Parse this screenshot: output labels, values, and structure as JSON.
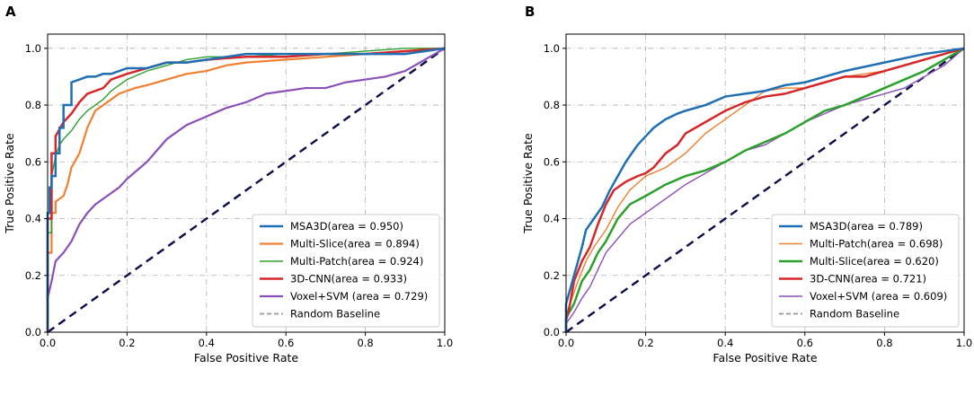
{
  "figure": {
    "panel_labels": [
      "A",
      "B"
    ]
  },
  "chart_data": [
    {
      "panel": "A",
      "type": "line",
      "xlabel": "False Positive Rate",
      "ylabel": "True Positive Rate",
      "xlim": [
        0,
        1.0
      ],
      "ylim": [
        0,
        1.05
      ],
      "xticks": [
        0.0,
        0.2,
        0.4,
        0.6,
        0.8,
        1.0
      ],
      "yticks": [
        0.0,
        0.2,
        0.4,
        0.6,
        0.8,
        1.0
      ],
      "tick_labels": [
        "0.0",
        "0.2",
        "0.4",
        "0.6",
        "0.8",
        "1.0"
      ],
      "grid": true,
      "legend_position": "lower-right",
      "series": [
        {
          "name": "MSA3D(area = 0.950)",
          "color": "#1f6fb4",
          "width": 2.5,
          "dash": "",
          "x": [
            0,
            0,
            0.005,
            0.005,
            0.01,
            0.01,
            0.02,
            0.02,
            0.03,
            0.03,
            0.04,
            0.04,
            0.06,
            0.06,
            0.08,
            0.1,
            0.12,
            0.14,
            0.16,
            0.2,
            0.25,
            0.3,
            0.35,
            0.4,
            0.45,
            0.5,
            0.6,
            0.7,
            0.8,
            0.9,
            0.95,
            1.0
          ],
          "y": [
            0,
            0.42,
            0.42,
            0.51,
            0.51,
            0.55,
            0.55,
            0.63,
            0.63,
            0.72,
            0.72,
            0.8,
            0.8,
            0.88,
            0.89,
            0.9,
            0.9,
            0.91,
            0.91,
            0.93,
            0.93,
            0.95,
            0.95,
            0.96,
            0.97,
            0.98,
            0.98,
            0.98,
            0.98,
            0.98,
            0.99,
            1.0
          ]
        },
        {
          "name": "Multi-Slice(area = 0.894)",
          "color": "#f07f2f",
          "width": 2.2,
          "dash": "",
          "x": [
            0,
            0,
            0.01,
            0.01,
            0.02,
            0.02,
            0.04,
            0.05,
            0.06,
            0.08,
            0.1,
            0.12,
            0.14,
            0.16,
            0.18,
            0.2,
            0.22,
            0.25,
            0.3,
            0.35,
            0.4,
            0.45,
            0.5,
            0.6,
            0.7,
            0.8,
            0.9,
            1.0
          ],
          "y": [
            0,
            0.28,
            0.28,
            0.42,
            0.42,
            0.46,
            0.48,
            0.52,
            0.58,
            0.63,
            0.72,
            0.78,
            0.8,
            0.82,
            0.84,
            0.85,
            0.86,
            0.87,
            0.89,
            0.91,
            0.92,
            0.94,
            0.95,
            0.96,
            0.97,
            0.98,
            0.99,
            1.0
          ]
        },
        {
          "name": "Multi-Patch(area = 0.924)",
          "color": "#2ca02c",
          "width": 1.4,
          "dash": "",
          "x": [
            0,
            0,
            0.01,
            0.01,
            0.02,
            0.03,
            0.04,
            0.06,
            0.08,
            0.1,
            0.12,
            0.14,
            0.16,
            0.18,
            0.2,
            0.25,
            0.3,
            0.35,
            0.4,
            0.5,
            0.6,
            0.7,
            0.8,
            0.9,
            1.0
          ],
          "y": [
            0,
            0.35,
            0.35,
            0.55,
            0.62,
            0.66,
            0.68,
            0.71,
            0.75,
            0.78,
            0.8,
            0.82,
            0.85,
            0.87,
            0.89,
            0.92,
            0.94,
            0.96,
            0.97,
            0.97,
            0.98,
            0.98,
            0.99,
            1.0,
            1.0
          ]
        },
        {
          "name": "3D-CNN(area = 0.933)",
          "color": "#d62728",
          "width": 2.5,
          "dash": "",
          "x": [
            0,
            0,
            0.01,
            0.01,
            0.02,
            0.02,
            0.04,
            0.06,
            0.08,
            0.1,
            0.12,
            0.14,
            0.16,
            0.18,
            0.2,
            0.25,
            0.3,
            0.35,
            0.4,
            0.5,
            0.6,
            0.7,
            0.8,
            0.9,
            1.0
          ],
          "y": [
            0,
            0.4,
            0.4,
            0.63,
            0.63,
            0.69,
            0.74,
            0.77,
            0.81,
            0.84,
            0.85,
            0.86,
            0.89,
            0.9,
            0.91,
            0.93,
            0.95,
            0.95,
            0.96,
            0.97,
            0.97,
            0.98,
            0.98,
            0.99,
            1.0
          ]
        },
        {
          "name": "Voxel+SVM (area = 0.729)",
          "color": "#8a4fb8",
          "width": 2.2,
          "dash": "",
          "x": [
            0,
            0,
            0.01,
            0.02,
            0.04,
            0.06,
            0.08,
            0.1,
            0.12,
            0.15,
            0.18,
            0.2,
            0.25,
            0.3,
            0.35,
            0.4,
            0.45,
            0.5,
            0.55,
            0.6,
            0.65,
            0.7,
            0.75,
            0.8,
            0.85,
            0.9,
            0.95,
            1.0
          ],
          "y": [
            0,
            0.12,
            0.18,
            0.25,
            0.28,
            0.32,
            0.38,
            0.42,
            0.45,
            0.48,
            0.51,
            0.54,
            0.6,
            0.68,
            0.73,
            0.76,
            0.79,
            0.81,
            0.84,
            0.85,
            0.86,
            0.86,
            0.88,
            0.89,
            0.9,
            0.92,
            0.96,
            1.0
          ]
        },
        {
          "name": "Random Baseline",
          "color": "#0b0b4a",
          "width": 2.4,
          "dash": "9,6",
          "x": [
            0,
            1.0
          ],
          "y": [
            0,
            1.0
          ]
        }
      ]
    },
    {
      "panel": "B",
      "type": "line",
      "xlabel": "False Positive Rate",
      "ylabel": "True Positive Rate",
      "xlim": [
        0,
        1.0
      ],
      "ylim": [
        0,
        1.05
      ],
      "xticks": [
        0.0,
        0.2,
        0.4,
        0.6,
        0.8,
        1.0
      ],
      "yticks": [
        0.0,
        0.2,
        0.4,
        0.6,
        0.8,
        1.0
      ],
      "tick_labels": [
        "0.0",
        "0.2",
        "0.4",
        "0.6",
        "0.8",
        "1.0"
      ],
      "grid": true,
      "legend_position": "lower-right",
      "series": [
        {
          "name": "MSA3D(area = 0.789)",
          "color": "#1f6fb4",
          "width": 2.5,
          "dash": "",
          "x": [
            0,
            0,
            0.01,
            0.02,
            0.03,
            0.04,
            0.05,
            0.07,
            0.09,
            0.11,
            0.13,
            0.15,
            0.18,
            0.2,
            0.22,
            0.25,
            0.28,
            0.3,
            0.35,
            0.4,
            0.45,
            0.5,
            0.55,
            0.6,
            0.7,
            0.8,
            0.9,
            1.0
          ],
          "y": [
            0,
            0.1,
            0.15,
            0.2,
            0.25,
            0.3,
            0.36,
            0.4,
            0.44,
            0.5,
            0.55,
            0.6,
            0.66,
            0.69,
            0.72,
            0.75,
            0.77,
            0.78,
            0.8,
            0.83,
            0.84,
            0.85,
            0.87,
            0.88,
            0.92,
            0.95,
            0.98,
            1.0
          ]
        },
        {
          "name": "Multi-Patch(area = 0.698)",
          "color": "#f07f2f",
          "width": 1.4,
          "dash": "",
          "x": [
            0,
            0,
            0.01,
            0.03,
            0.05,
            0.07,
            0.1,
            0.13,
            0.16,
            0.2,
            0.25,
            0.3,
            0.35,
            0.4,
            0.45,
            0.5,
            0.55,
            0.6,
            0.7,
            0.8,
            0.9,
            1.0
          ],
          "y": [
            0,
            0.05,
            0.1,
            0.18,
            0.25,
            0.3,
            0.36,
            0.44,
            0.5,
            0.55,
            0.58,
            0.63,
            0.7,
            0.75,
            0.8,
            0.85,
            0.86,
            0.86,
            0.9,
            0.92,
            0.96,
            1.0
          ]
        },
        {
          "name": "Multi-Slice(area = 0.620)",
          "color": "#2ca02c",
          "width": 2.5,
          "dash": "",
          "x": [
            0,
            0,
            0.02,
            0.04,
            0.06,
            0.08,
            0.1,
            0.13,
            0.16,
            0.2,
            0.25,
            0.3,
            0.35,
            0.4,
            0.45,
            0.5,
            0.55,
            0.6,
            0.65,
            0.7,
            0.75,
            0.8,
            0.9,
            1.0
          ],
          "y": [
            0,
            0.05,
            0.1,
            0.18,
            0.22,
            0.28,
            0.32,
            0.4,
            0.45,
            0.48,
            0.52,
            0.55,
            0.57,
            0.6,
            0.64,
            0.67,
            0.7,
            0.74,
            0.78,
            0.8,
            0.83,
            0.86,
            0.92,
            1.0
          ]
        },
        {
          "name": "3D-CNN(area = 0.721)",
          "color": "#d62728",
          "width": 2.5,
          "dash": "",
          "x": [
            0,
            0,
            0.01,
            0.02,
            0.04,
            0.06,
            0.08,
            0.1,
            0.12,
            0.15,
            0.18,
            0.2,
            0.22,
            0.25,
            0.28,
            0.3,
            0.35,
            0.4,
            0.45,
            0.5,
            0.55,
            0.6,
            0.65,
            0.7,
            0.75,
            0.8,
            0.9,
            1.0
          ],
          "y": [
            0,
            0.04,
            0.1,
            0.18,
            0.25,
            0.3,
            0.38,
            0.45,
            0.5,
            0.53,
            0.55,
            0.56,
            0.58,
            0.63,
            0.66,
            0.7,
            0.74,
            0.78,
            0.81,
            0.83,
            0.84,
            0.86,
            0.88,
            0.9,
            0.9,
            0.92,
            0.96,
            1.0
          ]
        },
        {
          "name": "Voxel+SVM (area = 0.609)",
          "color": "#8a4fb8",
          "width": 1.4,
          "dash": "",
          "x": [
            0,
            0,
            0.02,
            0.04,
            0.06,
            0.08,
            0.1,
            0.13,
            0.16,
            0.2,
            0.25,
            0.3,
            0.35,
            0.4,
            0.45,
            0.5,
            0.55,
            0.6,
            0.65,
            0.7,
            0.75,
            0.8,
            0.85,
            0.9,
            0.95,
            1.0
          ],
          "y": [
            0,
            0.03,
            0.07,
            0.12,
            0.16,
            0.22,
            0.28,
            0.33,
            0.38,
            0.42,
            0.47,
            0.52,
            0.56,
            0.6,
            0.64,
            0.66,
            0.7,
            0.74,
            0.77,
            0.8,
            0.82,
            0.84,
            0.86,
            0.9,
            0.94,
            1.0
          ]
        },
        {
          "name": "Random Baseline",
          "color": "#0b0b4a",
          "width": 2.4,
          "dash": "9,6",
          "x": [
            0,
            1.0
          ],
          "y": [
            0,
            1.0
          ]
        }
      ]
    }
  ]
}
